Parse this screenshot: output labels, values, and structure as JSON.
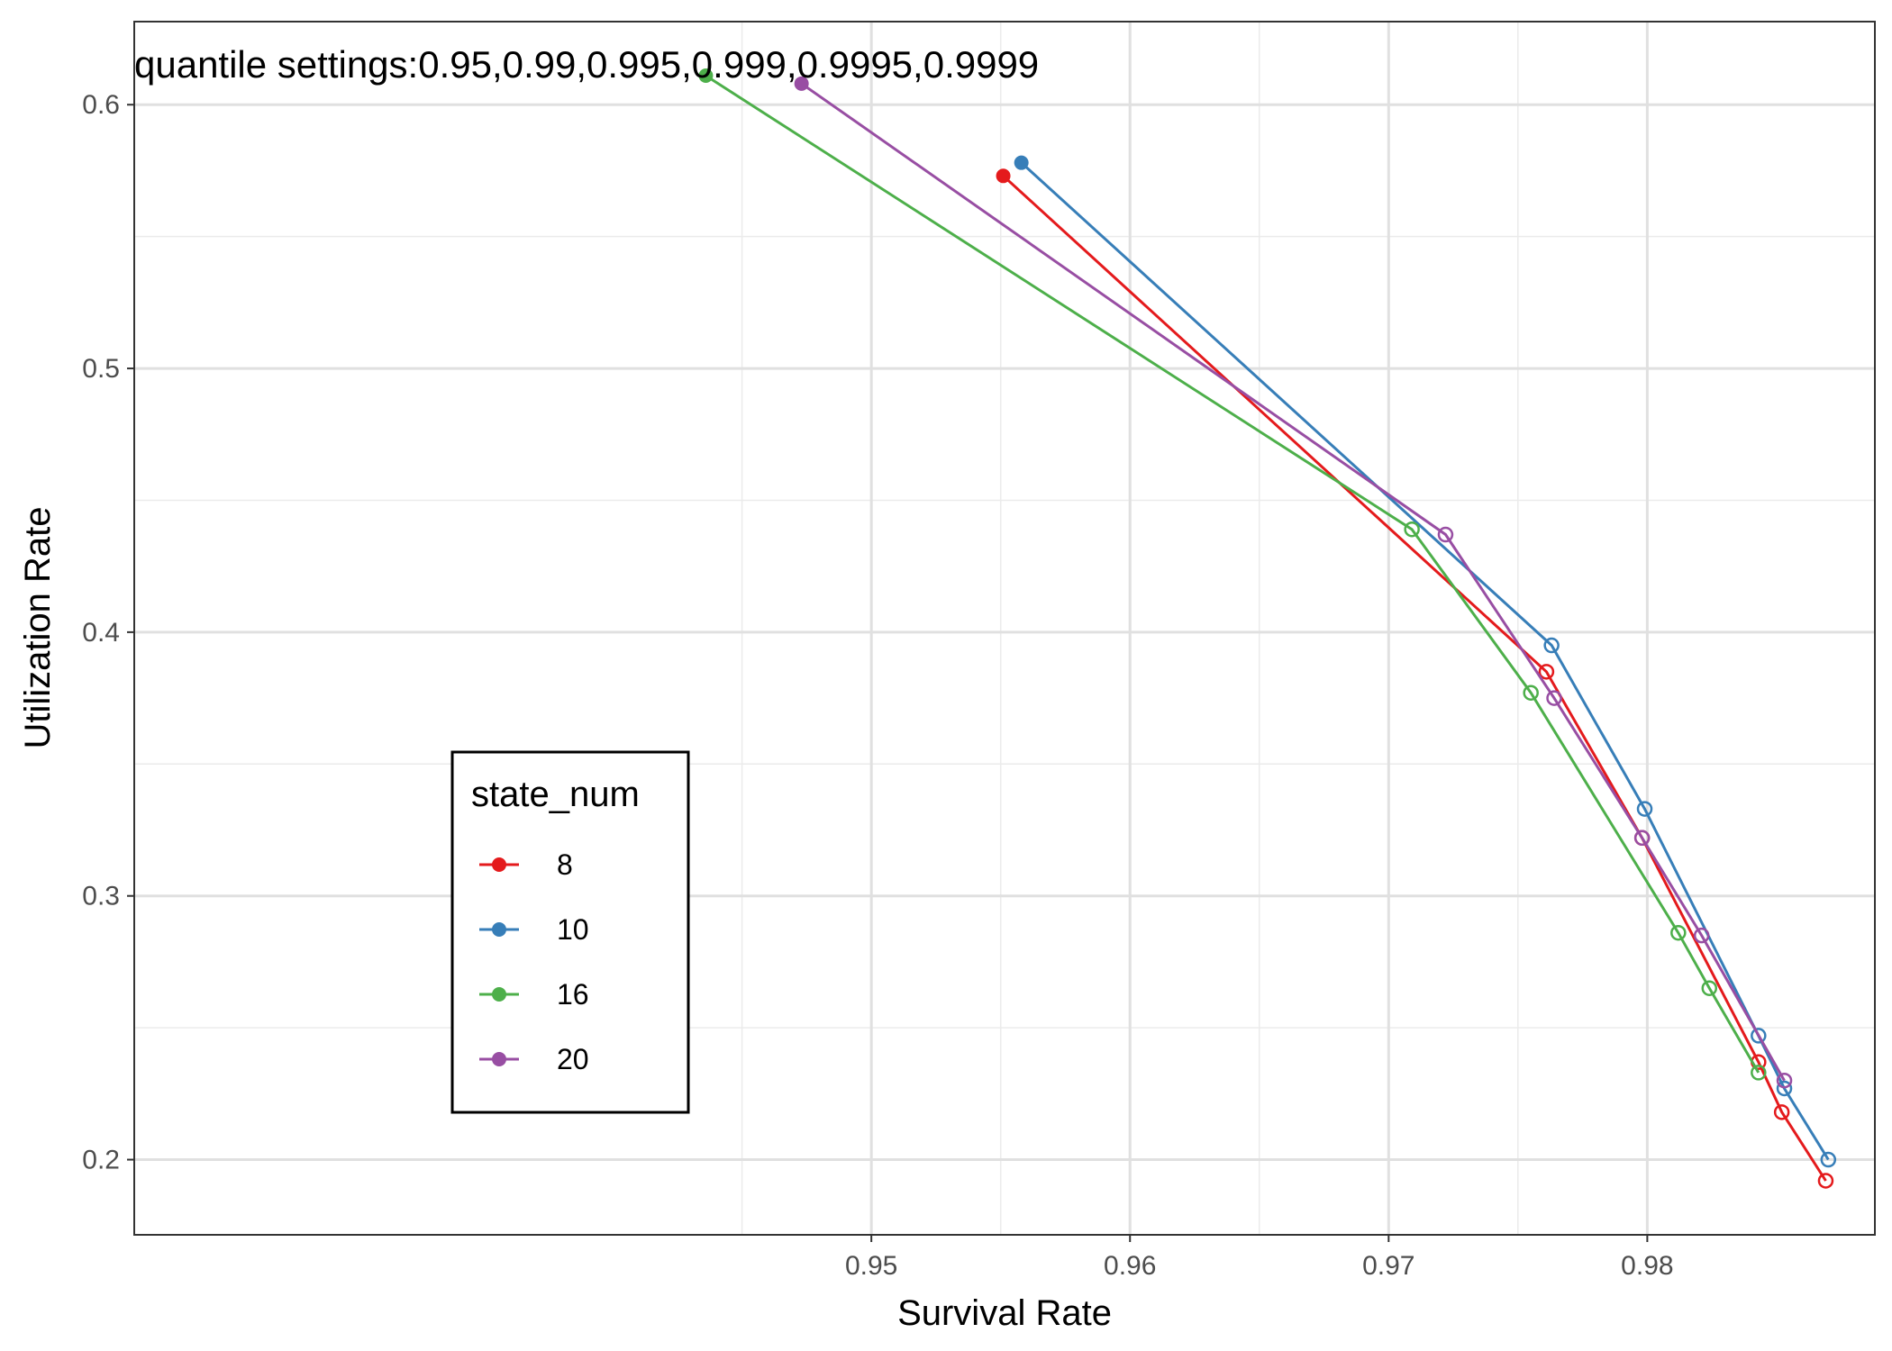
{
  "chart_data": {
    "type": "line",
    "title": "",
    "annotation": "quantile settings:0.95,0.99,0.995,0.999,0.9995,0.9999",
    "xlabel": "Survival Rate",
    "ylabel": "Utilization Rate",
    "xlim": [
      0.9215,
      0.9888
    ],
    "ylim": [
      0.1715,
      0.6315
    ],
    "x_ticks": [
      0.95,
      0.96,
      0.97,
      0.98
    ],
    "x_tick_labels": [
      "0.95",
      "0.96",
      "0.97",
      "0.98"
    ],
    "y_ticks": [
      0.2,
      0.3,
      0.4,
      0.5,
      0.6
    ],
    "y_tick_labels": [
      "0.2",
      "0.3",
      "0.4",
      "0.5",
      "0.6"
    ],
    "grid": true,
    "legend": {
      "title": "state_num",
      "placement": "bottom-left inside"
    },
    "series": [
      {
        "name": "8",
        "color": "#e41a1c",
        "x": [
          0.9551,
          0.9761,
          0.9798,
          0.9843,
          0.9852,
          0.9869
        ],
        "y": [
          0.573,
          0.385,
          0.322,
          0.237,
          0.218,
          0.192
        ]
      },
      {
        "name": "10",
        "color": "#377eb8",
        "x": [
          0.9558,
          0.9763,
          0.9799,
          0.9843,
          0.9853,
          0.987
        ],
        "y": [
          0.578,
          0.395,
          0.333,
          0.247,
          0.227,
          0.2
        ]
      },
      {
        "name": "16",
        "color": "#4daf4a",
        "x": [
          0.9436,
          0.9709,
          0.9755,
          0.9812,
          0.9824,
          0.9843
        ],
        "y": [
          0.611,
          0.439,
          0.377,
          0.286,
          0.265,
          0.233
        ]
      },
      {
        "name": "20",
        "color": "#984ea3",
        "x": [
          0.9473,
          0.9722,
          0.9764,
          0.9798,
          0.9821,
          0.9853
        ],
        "y": [
          0.608,
          0.437,
          0.375,
          0.322,
          0.285,
          0.23
        ]
      }
    ]
  }
}
